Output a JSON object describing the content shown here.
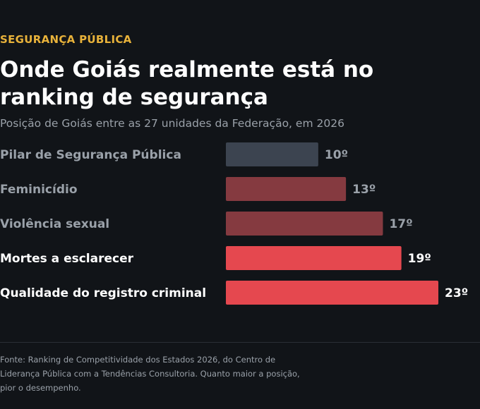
{
  "header": {
    "kicker": "SEGURANÇA PÚBLICA",
    "title": "Onde Goiás realmente está no ranking de segurança",
    "subtitle": "Posição de Goiás entre as 27 unidades da Federação, em 2026"
  },
  "chart_data": {
    "type": "bar",
    "orientation": "horizontal",
    "categories": [
      "Pilar de Segurança Pública",
      "Feminicídio",
      "Violência sexual",
      "Mortes a esclarecer",
      "Qualidade do registro criminal"
    ],
    "values": [
      10,
      13,
      17,
      19,
      23
    ],
    "value_labels": [
      "10º",
      "13º",
      "17º",
      "19º",
      "23º"
    ],
    "bar_colors": [
      "#3c4450",
      "#853a40",
      "#853a40",
      "#e5484f",
      "#e5484f"
    ],
    "label_colors": [
      "#9aa1a9",
      "#9aa1a9",
      "#9aa1a9",
      "#ffffff",
      "#ffffff"
    ],
    "xlim": [
      0,
      23
    ],
    "grid": false,
    "legend": "none"
  },
  "footer": {
    "source": "Fonte: Ranking de Competitividade dos Estados 2026, do Centro de Liderança Pública com a Tendências Consultoria. Quanto maior a posição, pior o desempenho."
  }
}
